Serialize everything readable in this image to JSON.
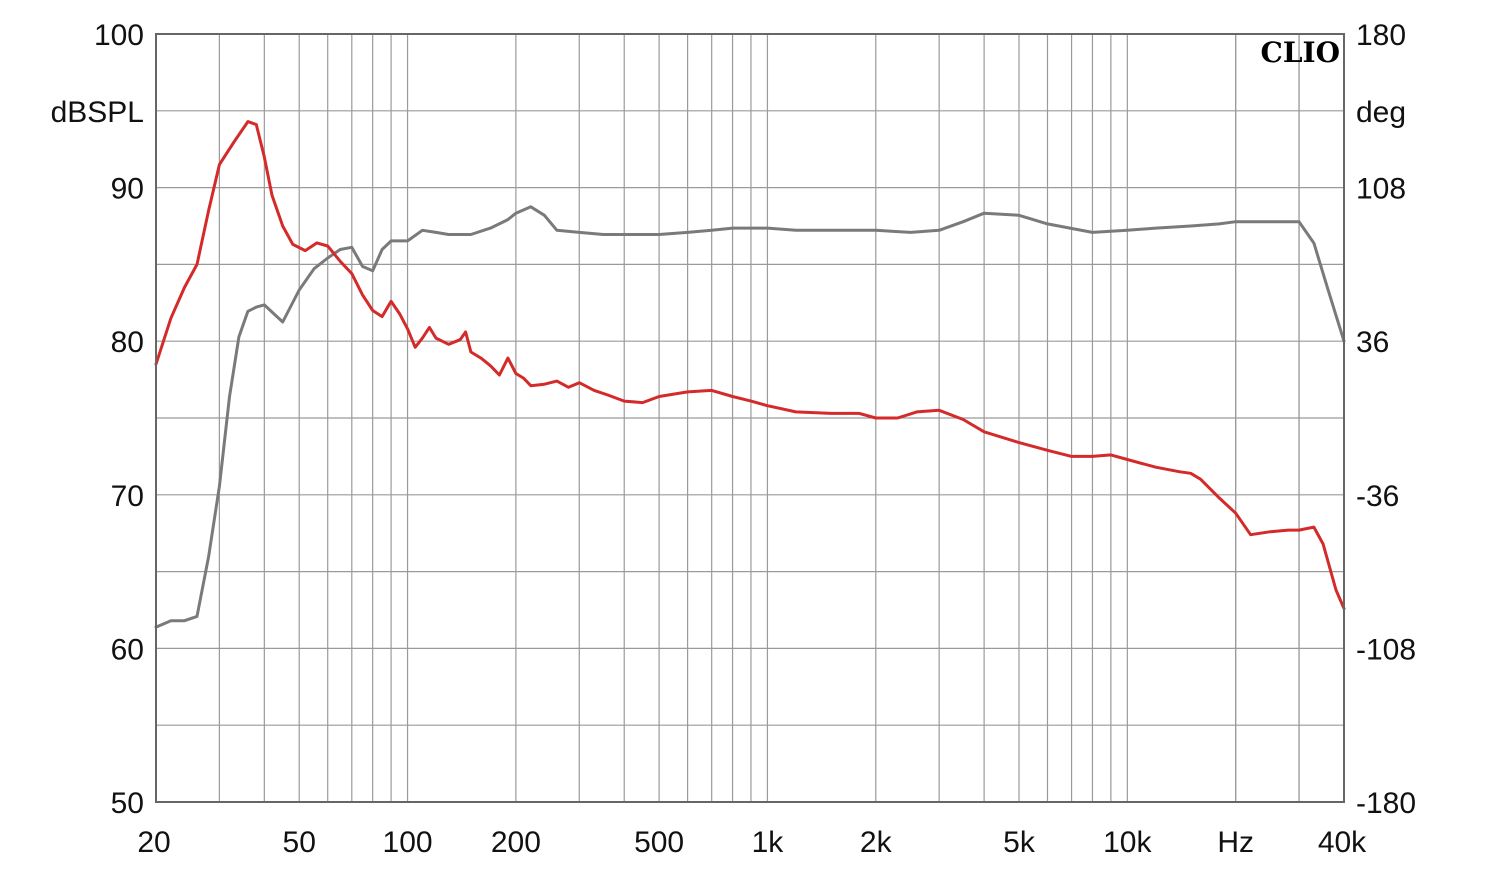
{
  "chart_data": {
    "type": "line",
    "brand": "CLIO",
    "x_scale": "log",
    "xlim": [
      20,
      40000
    ],
    "x_tick_labels": [
      {
        "value": 20,
        "label": "20"
      },
      {
        "value": 50,
        "label": "50"
      },
      {
        "value": 100,
        "label": "100"
      },
      {
        "value": 200,
        "label": "200"
      },
      {
        "value": 500,
        "label": "500"
      },
      {
        "value": 1000,
        "label": "1k"
      },
      {
        "value": 2000,
        "label": "2k"
      },
      {
        "value": 5000,
        "label": "5k"
      },
      {
        "value": 10000,
        "label": "10k"
      },
      {
        "value": 20000,
        "label": "Hz"
      },
      {
        "value": 40000,
        "label": "40k"
      }
    ],
    "y_left": {
      "unit": "dBSPL",
      "ylim": [
        50,
        100
      ],
      "ticks": [
        50,
        60,
        70,
        80,
        90,
        100
      ],
      "labels": [
        "50",
        "60",
        "70",
        "80",
        "90",
        "100"
      ]
    },
    "y_right": {
      "unit": "deg",
      "ylim": [
        -180,
        180
      ],
      "ticks": [
        -180,
        -108,
        -36,
        36,
        108,
        180
      ],
      "labels": [
        "-180",
        "-108",
        "-36",
        "36",
        "108",
        "180"
      ]
    },
    "grid": true,
    "series": [
      {
        "axis": "left",
        "color": "#d42a2a",
        "x": [
          20,
          22,
          24,
          26,
          28,
          30,
          33,
          36,
          38,
          40,
          42,
          45,
          48,
          52,
          56,
          60,
          65,
          70,
          75,
          80,
          85,
          90,
          95,
          100,
          105,
          110,
          115,
          120,
          130,
          140,
          145,
          150,
          160,
          170,
          180,
          190,
          200,
          210,
          220,
          240,
          260,
          280,
          300,
          330,
          360,
          400,
          450,
          500,
          600,
          700,
          800,
          900,
          1000,
          1200,
          1500,
          1800,
          2000,
          2300,
          2600,
          3000,
          3500,
          4000,
          5000,
          6000,
          7000,
          8000,
          9000,
          10000,
          12000,
          14000,
          15000,
          16000,
          18000,
          20000,
          22000,
          25000,
          28000,
          30000,
          33000,
          35000,
          38000,
          40000
        ],
        "y": [
          78.5,
          81.5,
          83.5,
          85,
          88.5,
          91.5,
          93,
          94.3,
          94.1,
          92,
          89.5,
          87.5,
          86.3,
          85.9,
          86.4,
          86.2,
          85.2,
          84.4,
          83,
          82,
          81.6,
          82.6,
          81.8,
          80.8,
          79.6,
          80.2,
          80.9,
          80.2,
          79.8,
          80.1,
          80.6,
          79.3,
          78.9,
          78.4,
          77.8,
          78.9,
          77.9,
          77.6,
          77.1,
          77.2,
          77.4,
          77.0,
          77.3,
          76.8,
          76.5,
          76.1,
          76.0,
          76.4,
          76.7,
          76.8,
          76.4,
          76.1,
          75.8,
          75.4,
          75.3,
          75.3,
          75.0,
          75.0,
          75.4,
          75.5,
          74.9,
          74.1,
          73.4,
          72.9,
          72.5,
          72.5,
          72.6,
          72.3,
          71.8,
          71.5,
          71.4,
          71.0,
          69.8,
          68.8,
          67.4,
          67.6,
          67.7,
          67.7,
          67.9,
          66.8,
          63.8,
          62.6
        ]
      },
      {
        "axis": "right",
        "color": "#7a7a7a",
        "x": [
          20,
          22,
          24,
          26,
          28,
          30,
          32,
          34,
          36,
          38,
          40,
          45,
          50,
          55,
          60,
          65,
          70,
          75,
          80,
          85,
          90,
          100,
          110,
          120,
          130,
          150,
          170,
          190,
          200,
          220,
          240,
          260,
          300,
          350,
          400,
          500,
          600,
          700,
          800,
          1000,
          1200,
          1500,
          2000,
          2500,
          3000,
          3500,
          4000,
          5000,
          6000,
          8000,
          10000,
          12000,
          15000,
          18000,
          20000,
          22000,
          25000,
          28000,
          30000,
          33000,
          36000,
          40000
        ],
        "y": [
          -98,
          -95,
          -95,
          -93,
          -65,
          -32,
          10,
          38,
          50,
          52,
          53,
          45,
          60,
          70,
          75,
          79,
          80,
          71,
          69,
          79,
          83,
          83,
          88,
          87,
          86,
          86,
          89,
          93,
          96,
          99,
          95,
          88,
          87,
          86,
          86,
          86,
          87,
          88,
          89,
          89,
          88,
          88,
          88,
          87,
          88,
          92,
          96,
          95,
          91,
          87,
          88,
          89,
          90,
          91,
          92,
          92,
          92,
          92,
          92,
          82,
          61,
          36
        ]
      }
    ]
  }
}
